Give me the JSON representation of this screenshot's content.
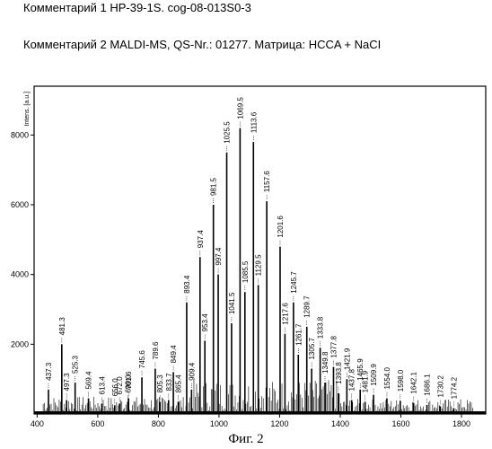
{
  "comment1": "Комментарий 1 HP-39-1S. cog-08-013S0-3",
  "comment2": "Комментарий 2 MALDI-MS, QS-Nr.: 01277. Матрица: HCCA + NaCI",
  "caption": "Фиг. 2",
  "chart_data": {
    "type": "line",
    "title": "",
    "xlabel": "",
    "ylabel": "Intens. [a.u.]",
    "xlim": [
      390,
      1880
    ],
    "ylim": [
      0,
      9400
    ],
    "x_ticks": [
      400,
      600,
      800,
      1000,
      1200,
      1400,
      1600,
      1800
    ],
    "y_ticks": [
      2000,
      4000,
      6000,
      8000
    ],
    "grid": false,
    "peaks": [
      {
        "x": 437.3,
        "y": 700,
        "label": "437.3"
      },
      {
        "x": 481.3,
        "y": 2000,
        "label": "481.3"
      },
      {
        "x": 497.3,
        "y": 400,
        "label": "497.3"
      },
      {
        "x": 525.3,
        "y": 900,
        "label": "525.3"
      },
      {
        "x": 569.4,
        "y": 450,
        "label": "569.4"
      },
      {
        "x": 613.4,
        "y": 300,
        "label": "613.4"
      },
      {
        "x": 656.0,
        "y": 250,
        "label": "656.0"
      },
      {
        "x": 672.0,
        "y": 300,
        "label": "672.0"
      },
      {
        "x": 699.0,
        "y": 350,
        "label": "699.0"
      },
      {
        "x": 701.6,
        "y": 450,
        "label": "701.6"
      },
      {
        "x": 745.6,
        "y": 1050,
        "label": "745.6"
      },
      {
        "x": 789.6,
        "y": 1300,
        "label": "789.6"
      },
      {
        "x": 805.3,
        "y": 350,
        "label": "805.3"
      },
      {
        "x": 833.7,
        "y": 400,
        "label": "833.7"
      },
      {
        "x": 849.4,
        "y": 1200,
        "label": "849.4"
      },
      {
        "x": 865.4,
        "y": 350,
        "label": "865.4"
      },
      {
        "x": 893.4,
        "y": 3200,
        "label": "893.4"
      },
      {
        "x": 909.4,
        "y": 700,
        "label": "909.4"
      },
      {
        "x": 937.4,
        "y": 4500,
        "label": "937.4"
      },
      {
        "x": 953.4,
        "y": 2100,
        "label": "953.4"
      },
      {
        "x": 981.5,
        "y": 6000,
        "label": "981.5"
      },
      {
        "x": 997.4,
        "y": 4000,
        "label": "997.4"
      },
      {
        "x": 1025.5,
        "y": 7500,
        "label": "1025.5"
      },
      {
        "x": 1041.5,
        "y": 2600,
        "label": "1041.5"
      },
      {
        "x": 1069.5,
        "y": 8200,
        "label": "1069.5"
      },
      {
        "x": 1085.5,
        "y": 3500,
        "label": "1085.5"
      },
      {
        "x": 1113.6,
        "y": 7800,
        "label": "1113.6"
      },
      {
        "x": 1129.5,
        "y": 3700,
        "label": "1129.5"
      },
      {
        "x": 1157.6,
        "y": 6100,
        "label": "1157.6"
      },
      {
        "x": 1201.6,
        "y": 4800,
        "label": "1201.6"
      },
      {
        "x": 1217.6,
        "y": 2300,
        "label": "1217.6"
      },
      {
        "x": 1245.7,
        "y": 3200,
        "label": "1245.7"
      },
      {
        "x": 1261.7,
        "y": 1700,
        "label": "1261.7"
      },
      {
        "x": 1289.7,
        "y": 2500,
        "label": "1289.7"
      },
      {
        "x": 1305.7,
        "y": 1300,
        "label": "1305.7"
      },
      {
        "x": 1333.8,
        "y": 1900,
        "label": "1333.8"
      },
      {
        "x": 1349.8,
        "y": 900,
        "label": "1349.8"
      },
      {
        "x": 1377.8,
        "y": 1350,
        "label": "1377.8"
      },
      {
        "x": 1393.8,
        "y": 600,
        "label": "1393.8"
      },
      {
        "x": 1421.9,
        "y": 1000,
        "label": "1421.9"
      },
      {
        "x": 1437.8,
        "y": 400,
        "label": "1437.8"
      },
      {
        "x": 1465.9,
        "y": 700,
        "label": "1465.9"
      },
      {
        "x": 1481.9,
        "y": 350,
        "label": "1481.9"
      },
      {
        "x": 1509.9,
        "y": 550,
        "label": "1509.9"
      },
      {
        "x": 1554.0,
        "y": 450,
        "label": "1554.0"
      },
      {
        "x": 1598.0,
        "y": 380,
        "label": "1598.0"
      },
      {
        "x": 1642.1,
        "y": 320,
        "label": "1642.1"
      },
      {
        "x": 1686.1,
        "y": 260,
        "label": "1686.1"
      },
      {
        "x": 1730.2,
        "y": 220,
        "label": "1730.2"
      },
      {
        "x": 1774.2,
        "y": 170,
        "label": "1774.2"
      }
    ]
  }
}
